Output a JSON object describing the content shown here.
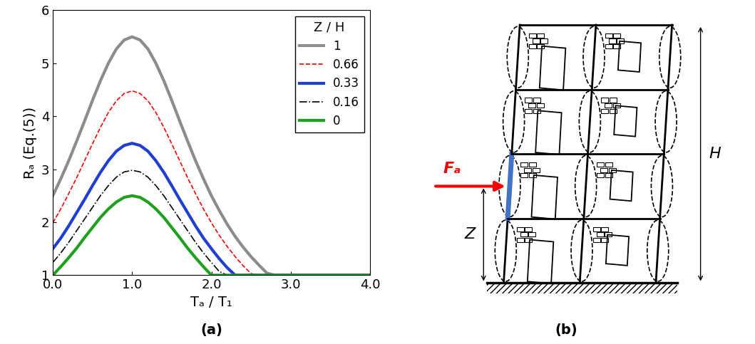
{
  "chart_data": {
    "type": "line",
    "title": "(a)",
    "x_label": "Tₐ / T₁",
    "y_label": "Rₐ (Eq.(5))",
    "x": [
      0,
      0.1,
      0.2,
      0.3,
      0.4,
      0.5,
      0.6,
      0.7,
      0.8,
      0.9,
      1.0,
      1.1,
      1.2,
      1.3,
      1.4,
      1.5,
      1.6,
      1.7,
      1.8,
      1.9,
      2.0,
      2.1,
      2.2,
      2.3,
      2.4,
      2.5,
      2.6,
      2.7,
      2.8,
      2.9,
      3.0,
      4.0
    ],
    "series": [
      {
        "name": "1",
        "color": "#8c8c8c",
        "line_style": "solid",
        "values": [
          2.5,
          2.82,
          3.16,
          3.53,
          3.91,
          4.3,
          4.67,
          5.0,
          5.27,
          5.44,
          5.5,
          5.44,
          5.27,
          5.0,
          4.67,
          4.3,
          3.91,
          3.53,
          3.16,
          2.82,
          2.5,
          2.22,
          1.96,
          1.73,
          1.53,
          1.35,
          1.19,
          1.04,
          1,
          1,
          1,
          1
        ]
      },
      {
        "name": "0.66",
        "color": "#ff0000",
        "line_style": "dashed",
        "values": [
          1.99,
          2.25,
          2.54,
          2.84,
          3.16,
          3.48,
          3.79,
          4.07,
          4.29,
          4.43,
          4.48,
          4.43,
          4.29,
          4.07,
          3.79,
          3.48,
          3.16,
          2.84,
          2.54,
          2.25,
          1.99,
          1.75,
          1.54,
          1.35,
          1.18,
          1.03,
          1,
          1,
          1,
          1,
          1,
          1
        ]
      },
      {
        "name": "0.33",
        "color": "#1f3fd0",
        "line_style": "solid",
        "values": [
          1.5,
          1.7,
          1.93,
          2.18,
          2.43,
          2.69,
          2.94,
          3.16,
          3.34,
          3.45,
          3.49,
          3.45,
          3.34,
          3.16,
          2.94,
          2.69,
          2.43,
          2.18,
          1.93,
          1.7,
          1.5,
          1.31,
          1.14,
          1,
          1,
          1,
          1,
          1,
          1,
          1,
          1,
          1
        ]
      },
      {
        "name": "0.16",
        "color": "#000000",
        "line_style": "dashdot",
        "values": [
          1.24,
          1.42,
          1.62,
          1.84,
          2.06,
          2.28,
          2.5,
          2.69,
          2.85,
          2.95,
          2.98,
          2.95,
          2.85,
          2.69,
          2.5,
          2.28,
          2.06,
          1.84,
          1.62,
          1.42,
          1.24,
          1.07,
          1,
          1,
          1,
          1,
          1,
          1,
          1,
          1,
          1,
          1
        ]
      },
      {
        "name": "0",
        "color": "#1fa01f",
        "line_style": "solid",
        "values": [
          1,
          1.16,
          1.33,
          1.51,
          1.71,
          1.9,
          2.09,
          2.25,
          2.38,
          2.47,
          2.5,
          2.47,
          2.38,
          2.25,
          2.09,
          1.9,
          1.71,
          1.51,
          1.33,
          1.16,
          1,
          1,
          1,
          1,
          1,
          1,
          1,
          1,
          1,
          1,
          1,
          1
        ]
      }
    ],
    "legend": "upper right",
    "legend_title": "Z / H",
    "xlim": [
      0,
      4
    ],
    "xticks": [
      {
        "value": 0,
        "label": "0.0"
      },
      {
        "value": 1,
        "label": "1.0"
      },
      {
        "value": 2,
        "label": "2.0"
      },
      {
        "value": 3,
        "label": "3.0"
      },
      {
        "value": 4,
        "label": "4.0"
      }
    ],
    "ylim": [
      1,
      6
    ],
    "yticks": [
      1,
      2,
      3,
      4,
      5,
      6
    ],
    "grid": false
  },
  "diagram": {
    "caption": "(b)",
    "force_label": "Fₐ",
    "level_label": "Z",
    "height_label": "H",
    "stories": 4,
    "bays": 2
  }
}
